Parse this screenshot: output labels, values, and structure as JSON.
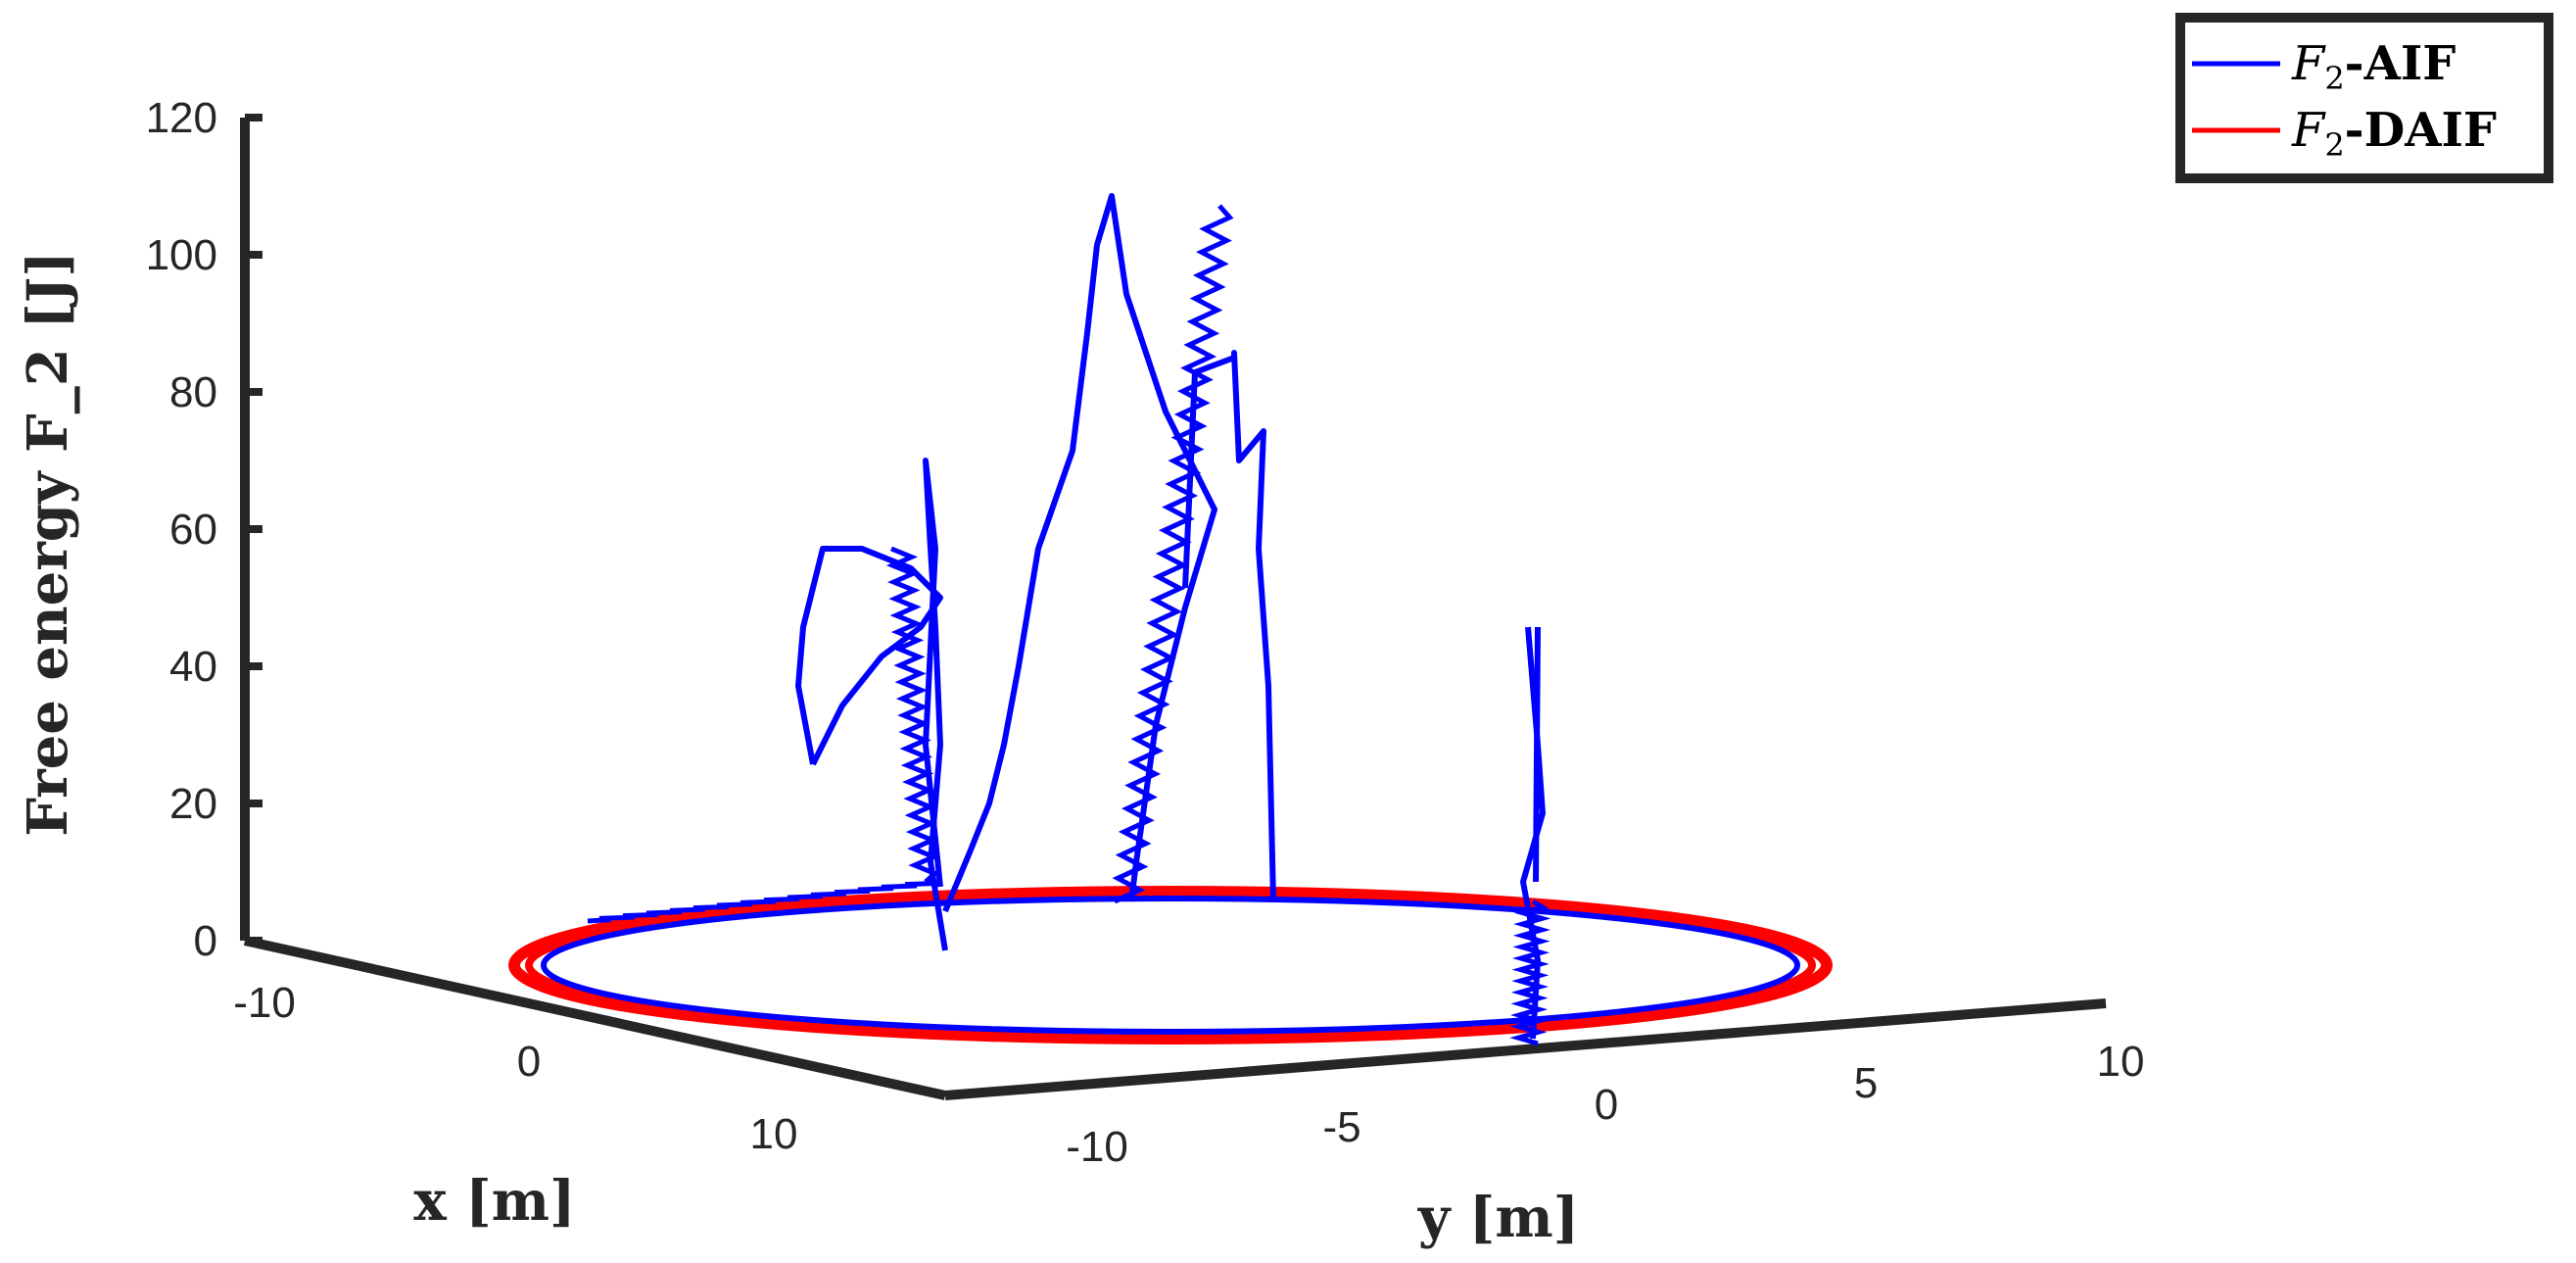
{
  "chart_data": {
    "type": "line",
    "subtype": "3d-line",
    "title": "",
    "xlabel": "x [m]",
    "ylabel": "y [m]",
    "zlabel": "Free energy F_2 [J]",
    "xlim": [
      -15,
      15
    ],
    "ylim": [
      -15,
      12
    ],
    "zlim": [
      0,
      120
    ],
    "x_ticks": [
      "-10",
      "0",
      "10"
    ],
    "y_ticks": [
      "-10",
      "-5",
      "0",
      "5",
      "10"
    ],
    "z_ticks": [
      "0",
      "20",
      "40",
      "60",
      "80",
      "100",
      "120"
    ],
    "grid": false,
    "legend_position": "top-right",
    "series": [
      {
        "name": "F2-AIF",
        "legend_label": {
          "italic": "F",
          "sub": "2",
          "rest": "-AIF"
        },
        "color": "#0000ff",
        "notes": "circular path x^2+y^2≈100 at F≈0 with five spikes",
        "points": [
          {
            "x": 10,
            "y": 0,
            "z": 0
          },
          {
            "x": 7.7,
            "y": -6.4,
            "z": 0
          },
          {
            "x": 3.4,
            "y": -9.4,
            "z": 0
          },
          {
            "x": -1.7,
            "y": -9.8,
            "z": 0
          },
          {
            "x": -5,
            "y": -8.7,
            "z": 0
          },
          {
            "x": -5,
            "y": -8.7,
            "z": 25
          },
          {
            "x": -5,
            "y": -8.7,
            "z": 55
          },
          {
            "x": -5,
            "y": -8.7,
            "z": 30
          },
          {
            "x": -6.4,
            "y": -7.7,
            "z": 2
          },
          {
            "x": -6.4,
            "y": -7.7,
            "z": 34
          },
          {
            "x": -6.4,
            "y": -7.7,
            "z": 10
          },
          {
            "x": -8.7,
            "y": -5,
            "z": 0
          },
          {
            "x": -9.4,
            "y": -3.4,
            "z": 0
          },
          {
            "x": -10,
            "y": -0.5,
            "z": 0
          },
          {
            "x": -9.9,
            "y": -0.5,
            "z": 18
          },
          {
            "x": -9.9,
            "y": -0.5,
            "z": 65
          },
          {
            "x": -9.9,
            "y": -0.5,
            "z": 105
          },
          {
            "x": -9.9,
            "y": -0.5,
            "z": 80
          },
          {
            "x": -9.9,
            "y": -0.5,
            "z": 0
          },
          {
            "x": -9.8,
            "y": 1.7,
            "z": 0
          },
          {
            "x": -9.8,
            "y": 1.7,
            "z": 82
          },
          {
            "x": -9.8,
            "y": 1.7,
            "z": 40
          },
          {
            "x": -9.8,
            "y": 1.7,
            "z": 0
          },
          {
            "x": -6.4,
            "y": 7.7,
            "z": 0
          },
          {
            "x": -1.7,
            "y": 9.8,
            "z": 0
          },
          {
            "x": -1.7,
            "y": 9.8,
            "z": 45
          },
          {
            "x": 3.4,
            "y": 9.4,
            "z": 0
          },
          {
            "x": 7.7,
            "y": 6.4,
            "z": 0
          },
          {
            "x": 10,
            "y": 0,
            "z": 0
          }
        ]
      },
      {
        "name": "F2-DAIF",
        "legend_label": {
          "italic": "F",
          "sub": "2",
          "rest": "-DAIF"
        },
        "color": "#ff0000",
        "notes": "circular path x^2+y^2≈100 with F≈0 throughout",
        "points": [
          {
            "x": 10,
            "y": 0,
            "z": 0
          },
          {
            "x": 8.7,
            "y": -5,
            "z": 0
          },
          {
            "x": 5,
            "y": -8.7,
            "z": 0
          },
          {
            "x": 0,
            "y": -10,
            "z": 0
          },
          {
            "x": -5,
            "y": -8.7,
            "z": 0
          },
          {
            "x": -8.7,
            "y": -5,
            "z": 0
          },
          {
            "x": -10,
            "y": 0,
            "z": 0
          },
          {
            "x": -8.7,
            "y": 5,
            "z": 0
          },
          {
            "x": -5,
            "y": 8.7,
            "z": 0
          },
          {
            "x": 0,
            "y": 10,
            "z": 0
          },
          {
            "x": 5,
            "y": 8.7,
            "z": 0
          },
          {
            "x": 8.7,
            "y": 5,
            "z": 0
          },
          {
            "x": 10,
            "y": 0,
            "z": 0
          }
        ]
      }
    ]
  }
}
